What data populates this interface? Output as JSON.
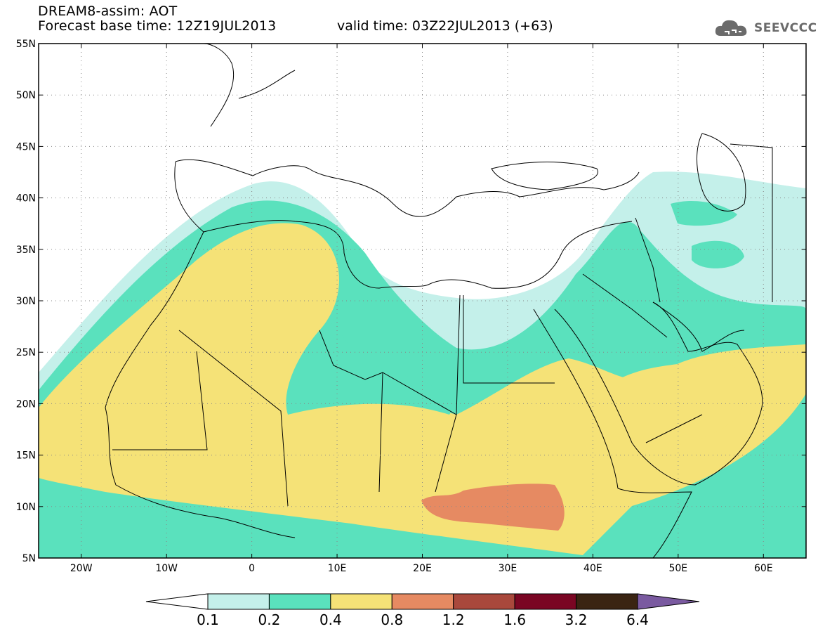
{
  "header": {
    "line1": "DREAM8-assim: AOT",
    "base_time": "Forecast base time: 12Z19JUL2013",
    "valid_time": "valid time: 03Z22JUL2013 (+63)"
  },
  "logo": {
    "text": "SEEVCCC",
    "icon": "cloud-icon"
  },
  "map": {
    "lat_labels": [
      "55N",
      "50N",
      "45N",
      "40N",
      "35N",
      "30N",
      "25N",
      "20N",
      "15N",
      "10N",
      "5N"
    ],
    "lon_labels": [
      "20W",
      "10W",
      "0",
      "10E",
      "20E",
      "30E",
      "40E",
      "50E",
      "60E"
    ]
  },
  "legend": {
    "labels": [
      "0.1",
      "0.2",
      "0.4",
      "0.8",
      "1.2",
      "1.6",
      "3.2",
      "6.4"
    ],
    "colors": [
      "#c4f0ea",
      "#5ae1bd",
      "#f5e277",
      "#e68a62",
      "#a9483c",
      "#7a0623",
      "#3a2412",
      "#7a5aa0"
    ]
  }
}
